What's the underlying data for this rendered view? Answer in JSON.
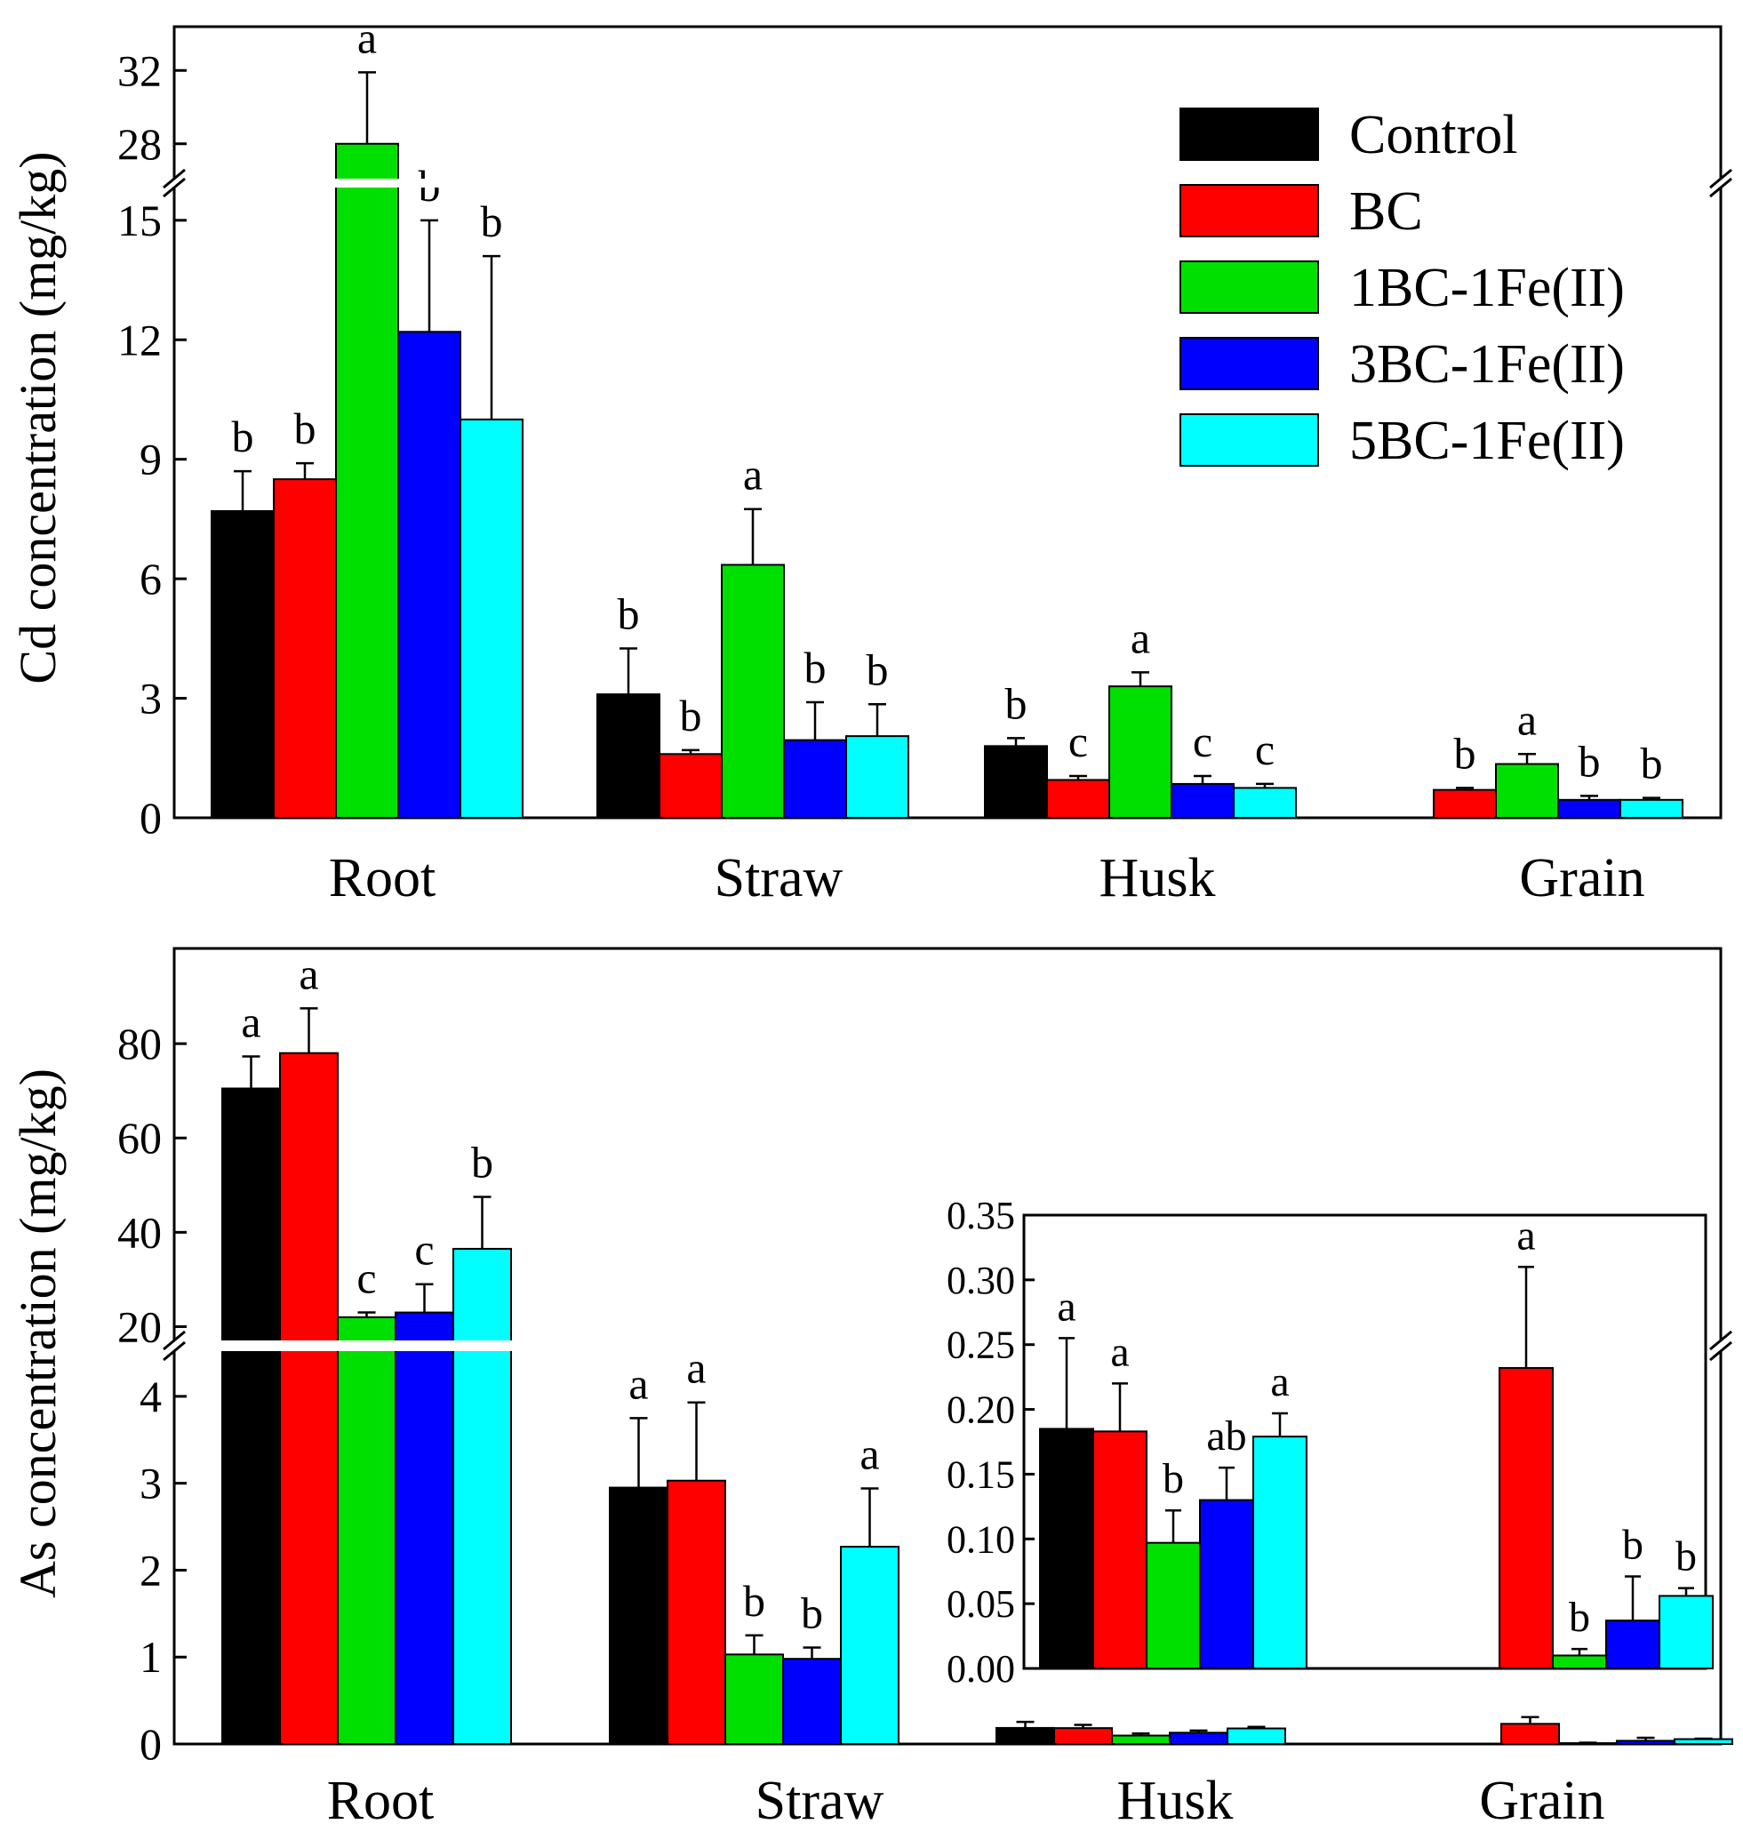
{
  "colors": {
    "Control": "#000000",
    "BC": "#ff0000",
    "1BC-1Fe(II)": "#00e000",
    "3BC-1Fe(II)": "#0000ff",
    "5BC-1Fe(II)": "#00ffff"
  },
  "chart_data": [
    {
      "type": "bar",
      "panel": "Cd",
      "ylabel": "Cd concentration (mg/kg)",
      "categories": [
        "Root",
        "Straw",
        "Husk",
        "Grain"
      ],
      "legend": [
        "Control",
        "BC",
        "1BC-1Fe(II)",
        "3BC-1Fe(II)",
        "5BC-1Fe(II)"
      ],
      "legend_position": "top-right",
      "axis_break": {
        "lower_range": [
          0,
          16
        ],
        "upper_range": [
          26,
          34
        ]
      },
      "yticks_lower": [
        "0",
        "3",
        "6",
        "9",
        "12",
        "15"
      ],
      "yticks_upper": [
        "28",
        "32"
      ],
      "series": [
        {
          "name": "Control",
          "values": [
            7.7,
            3.1,
            1.8,
            null
          ],
          "errors": [
            1.0,
            1.15,
            0.2,
            null
          ],
          "letters": [
            "b",
            "b",
            "b",
            ""
          ]
        },
        {
          "name": "BC",
          "values": [
            8.5,
            1.6,
            0.95,
            0.7
          ],
          "errors": [
            0.4,
            0.1,
            0.1,
            0.05
          ],
          "letters": [
            "b",
            "b",
            "c",
            "b"
          ]
        },
        {
          "name": "1BC-1Fe(II)",
          "values": [
            28.0,
            6.35,
            3.3,
            1.35
          ],
          "errors": [
            3.9,
            1.4,
            0.35,
            0.25
          ],
          "letters": [
            "a",
            "a",
            "a",
            "a"
          ]
        },
        {
          "name": "3BC-1Fe(II)",
          "values": [
            12.2,
            1.95,
            0.85,
            0.45
          ],
          "errors": [
            2.8,
            0.95,
            0.2,
            0.1
          ],
          "letters": [
            "b",
            "b",
            "c",
            "b"
          ]
        },
        {
          "name": "5BC-1Fe(II)",
          "values": [
            10.0,
            2.05,
            0.75,
            0.45
          ],
          "errors": [
            4.1,
            0.8,
            0.1,
            0.05
          ],
          "letters": [
            "b",
            "b",
            "c",
            "b"
          ]
        }
      ]
    },
    {
      "type": "bar",
      "panel": "As",
      "ylabel": "As concentration (mg/kg)",
      "categories": [
        "Root",
        "Straw",
        "Husk",
        "Grain"
      ],
      "axis_break": {
        "lower_range": [
          0,
          4.5
        ],
        "upper_range": [
          15,
          100
        ]
      },
      "yticks_lower": [
        "0",
        "1",
        "2",
        "3",
        "4"
      ],
      "yticks_upper": [
        "20",
        "40",
        "60",
        "80"
      ],
      "series": [
        {
          "name": "Control",
          "values": [
            70.5,
            2.95,
            0.185,
            null
          ],
          "errors": [
            6.8,
            0.8,
            0.07,
            null
          ],
          "letters": [
            "a",
            "a",
            "",
            ""
          ]
        },
        {
          "name": "BC",
          "values": [
            78.0,
            3.03,
            0.183,
            0.232
          ],
          "errors": [
            9.5,
            0.9,
            0.037,
            0.078
          ],
          "letters": [
            "a",
            "a",
            "",
            ""
          ]
        },
        {
          "name": "1BC-1Fe(II)",
          "values": [
            22.0,
            1.03,
            0.097,
            0.01
          ],
          "errors": [
            1.0,
            0.22,
            0.025,
            0.005
          ],
          "letters": [
            "c",
            "b",
            "",
            ""
          ]
        },
        {
          "name": "3BC-1Fe(II)",
          "values": [
            23.0,
            0.98,
            0.13,
            0.037
          ],
          "errors": [
            6.0,
            0.13,
            0.025,
            0.034
          ],
          "letters": [
            "c",
            "b",
            "",
            ""
          ]
        },
        {
          "name": "5BC-1Fe(II)",
          "values": [
            36.5,
            2.27,
            0.179,
            0.056
          ],
          "errors": [
            11.0,
            0.67,
            0.018,
            0.006
          ],
          "letters": [
            "b",
            "a",
            "",
            ""
          ]
        }
      ],
      "inset": {
        "categories": [
          "Husk",
          "Grain"
        ],
        "ylim": [
          0,
          0.35
        ],
        "yticks": [
          "0.00",
          "0.05",
          "0.10",
          "0.15",
          "0.20",
          "0.25",
          "0.30",
          "0.35"
        ],
        "series": [
          {
            "name": "Control",
            "values": [
              0.185,
              null
            ],
            "errors": [
              0.07,
              null
            ],
            "letters": [
              "a",
              ""
            ]
          },
          {
            "name": "BC",
            "values": [
              0.183,
              0.232
            ],
            "errors": [
              0.037,
              0.078
            ],
            "letters": [
              "a",
              "a"
            ]
          },
          {
            "name": "1BC-1Fe(II)",
            "values": [
              0.097,
              0.01
            ],
            "errors": [
              0.025,
              0.005
            ],
            "letters": [
              "b",
              "b"
            ]
          },
          {
            "name": "3BC-1Fe(II)",
            "values": [
              0.13,
              0.037
            ],
            "errors": [
              0.025,
              0.034
            ],
            "letters": [
              "ab",
              "b"
            ]
          },
          {
            "name": "5BC-1Fe(II)",
            "values": [
              0.179,
              0.056
            ],
            "errors": [
              0.018,
              0.006
            ],
            "letters": [
              "a",
              "b"
            ]
          }
        ]
      }
    }
  ]
}
